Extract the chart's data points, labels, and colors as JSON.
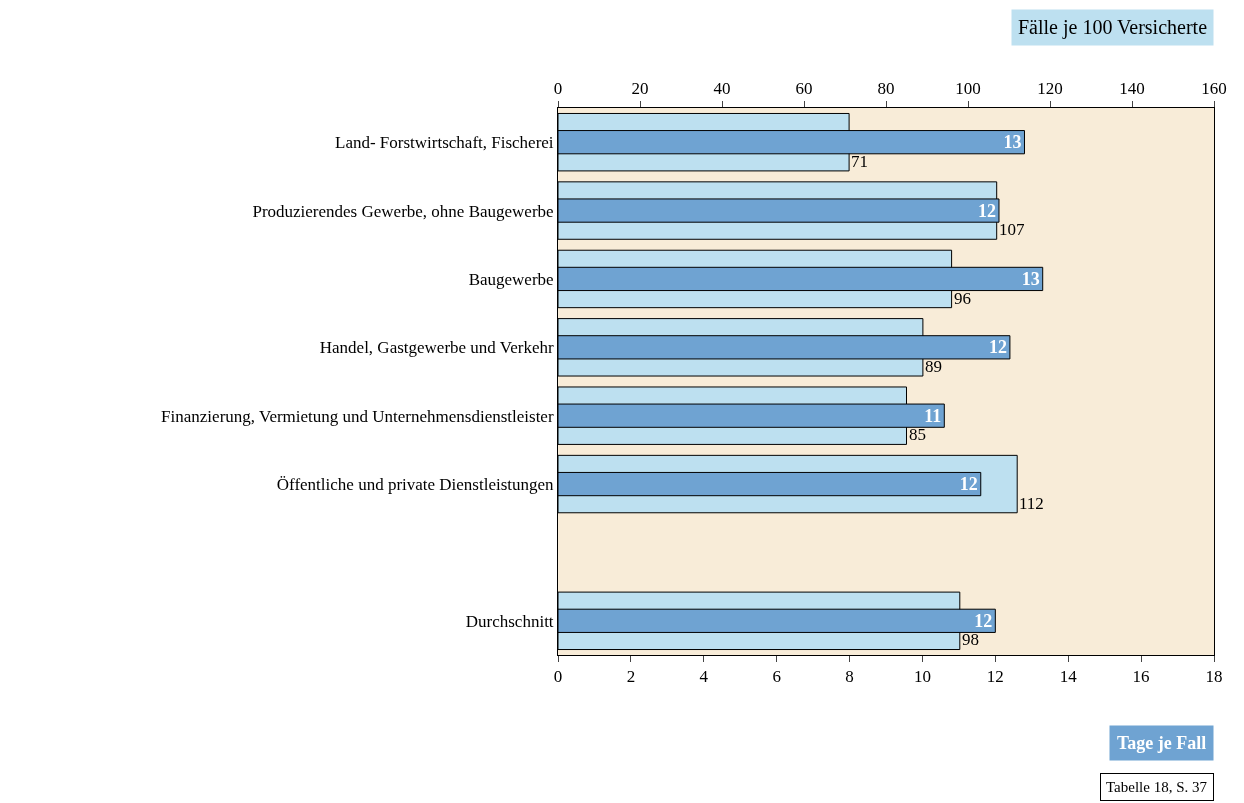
{
  "chart_data": {
    "type": "bar",
    "orientation": "horizontal",
    "categories": [
      "Land- Forstwirtschaft, Fischerei",
      "Produzierendes Gewerbe, ohne Baugewerbe",
      "Baugewerbe",
      "Handel, Gastgewerbe und Verkehr",
      "Finanzierung, Vermietung und Unternehmensdienstleister",
      "Öffentliche und private Dienstleistungen",
      null,
      "Durchschnitt"
    ],
    "series": [
      {
        "color": "#bde0f0",
        "axis": "x2",
        "values": [
          71,
          107,
          96,
          89,
          85,
          112,
          null,
          98
        ],
        "value_labels": [
          "71",
          "107",
          "96",
          "89",
          "85",
          "112",
          null,
          "98"
        ]
      },
      {
        "color": "#6fa3d2",
        "values": [
          12.8,
          12.1,
          13.3,
          12.4,
          10.6,
          11.6,
          null,
          12.0
        ],
        "value_labels": [
          "13",
          "12",
          "13",
          "12",
          "11",
          "12",
          null,
          "12"
        ]
      }
    ],
    "xlabel": "Tage je Fall",
    "x2label": "Fälle je 100 Versicherte",
    "xlim": [
      0,
      18
    ],
    "xticks": [
      0,
      2,
      4,
      6,
      8,
      10,
      12,
      14,
      16,
      18
    ],
    "x2lim": [
      0,
      160
    ],
    "x2ticks": [
      0,
      20,
      40,
      60,
      80,
      100,
      120,
      140,
      160
    ],
    "annotations": [
      "Tabelle 18, S. 37"
    ]
  }
}
